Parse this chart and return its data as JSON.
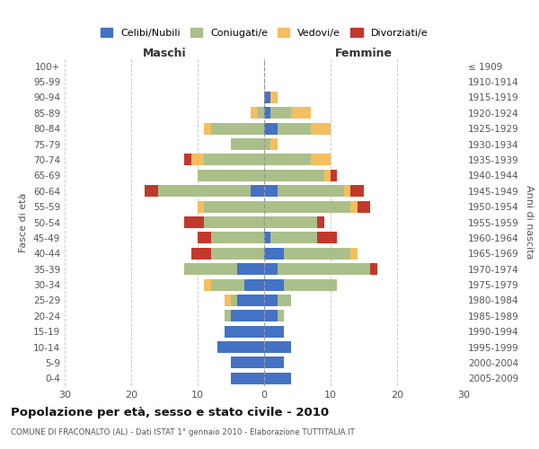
{
  "age_groups": [
    "0-4",
    "5-9",
    "10-14",
    "15-19",
    "20-24",
    "25-29",
    "30-34",
    "35-39",
    "40-44",
    "45-49",
    "50-54",
    "55-59",
    "60-64",
    "65-69",
    "70-74",
    "75-79",
    "80-84",
    "85-89",
    "90-94",
    "95-99",
    "100+"
  ],
  "birth_years": [
    "2005-2009",
    "2000-2004",
    "1995-1999",
    "1990-1994",
    "1985-1989",
    "1980-1984",
    "1975-1979",
    "1970-1974",
    "1965-1969",
    "1960-1964",
    "1955-1959",
    "1950-1954",
    "1945-1949",
    "1940-1944",
    "1935-1939",
    "1930-1934",
    "1925-1929",
    "1920-1924",
    "1915-1919",
    "1910-1914",
    "≤ 1909"
  ],
  "male": {
    "celibi": [
      5,
      5,
      7,
      6,
      5,
      4,
      3,
      4,
      0,
      0,
      0,
      0,
      2,
      0,
      0,
      0,
      0,
      0,
      0,
      0,
      0
    ],
    "coniugati": [
      0,
      0,
      0,
      0,
      1,
      1,
      5,
      8,
      8,
      8,
      9,
      9,
      14,
      10,
      9,
      5,
      8,
      1,
      0,
      0,
      0
    ],
    "vedovi": [
      0,
      0,
      0,
      0,
      0,
      1,
      1,
      0,
      0,
      0,
      0,
      1,
      0,
      0,
      2,
      0,
      1,
      1,
      0,
      0,
      0
    ],
    "divorziati": [
      0,
      0,
      0,
      0,
      0,
      0,
      0,
      0,
      3,
      2,
      3,
      0,
      2,
      0,
      1,
      0,
      0,
      0,
      0,
      0,
      0
    ]
  },
  "female": {
    "nubili": [
      4,
      3,
      4,
      3,
      2,
      2,
      3,
      2,
      3,
      1,
      0,
      0,
      2,
      0,
      0,
      0,
      2,
      1,
      1,
      0,
      0
    ],
    "coniugate": [
      0,
      0,
      0,
      0,
      1,
      2,
      8,
      14,
      10,
      7,
      8,
      13,
      10,
      9,
      7,
      1,
      5,
      3,
      0,
      0,
      0
    ],
    "vedove": [
      0,
      0,
      0,
      0,
      0,
      0,
      0,
      0,
      1,
      0,
      0,
      1,
      1,
      1,
      3,
      1,
      3,
      3,
      1,
      0,
      0
    ],
    "divorziate": [
      0,
      0,
      0,
      0,
      0,
      0,
      0,
      1,
      0,
      3,
      1,
      2,
      2,
      1,
      0,
      0,
      0,
      0,
      0,
      0,
      0
    ]
  },
  "colors": {
    "celibi": "#4472C4",
    "coniugati": "#AABF8A",
    "vedovi": "#F5BE5E",
    "divorziati": "#C0392B"
  },
  "xlim": 30,
  "title": "Popolazione per età, sesso e stato civile - 2010",
  "subtitle": "COMUNE DI FRACONALTO (AL) - Dati ISTAT 1° gennaio 2010 - Elaborazione TUTTITALIA.IT",
  "ylabel_left": "Fasce di età",
  "ylabel_right": "Anni di nascita",
  "xlabel_male": "Maschi",
  "xlabel_female": "Femmine",
  "legend_labels": [
    "Celibi/Nubili",
    "Coniugati/e",
    "Vedovi/e",
    "Divorziati/e"
  ],
  "bg_color": "#FFFFFF",
  "grid_color": "#CCCCCC"
}
